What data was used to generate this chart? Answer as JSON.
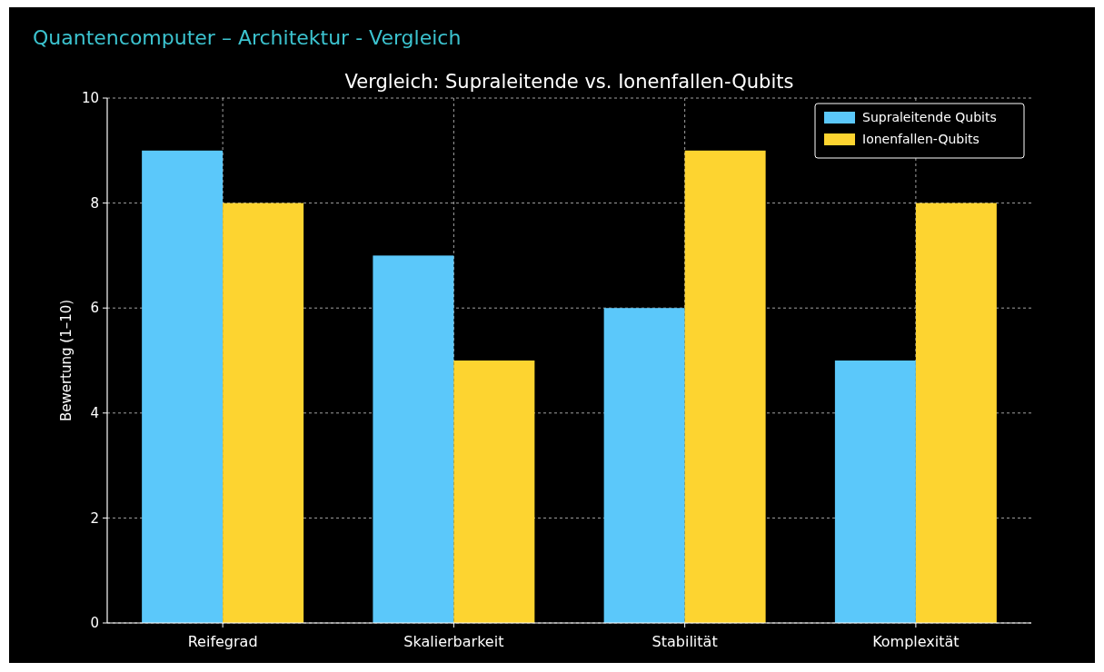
{
  "chart_data": {
    "type": "bar",
    "title": "Quantencomputer – Architektur - Vergleich",
    "subtitle": "Vergleich: Supraleitende vs. Ionenfallen-Qubits",
    "ylabel": "Bewertung (1–10)",
    "categories": [
      "Reifegrad",
      "Skalierbarkeit",
      "Stabilität",
      "Komplexität"
    ],
    "series": [
      {
        "name": "Supraleitende Qubits",
        "color": "#5bc8fa",
        "values": [
          9,
          7,
          6,
          5
        ]
      },
      {
        "name": "Ionenfallen-Qubits",
        "color": "#fdd430",
        "values": [
          8,
          5,
          9,
          8
        ]
      }
    ],
    "ylim": [
      0,
      10
    ],
    "yticks": [
      0,
      2,
      4,
      6,
      8,
      10
    ],
    "grid": true,
    "legend": "top right"
  }
}
